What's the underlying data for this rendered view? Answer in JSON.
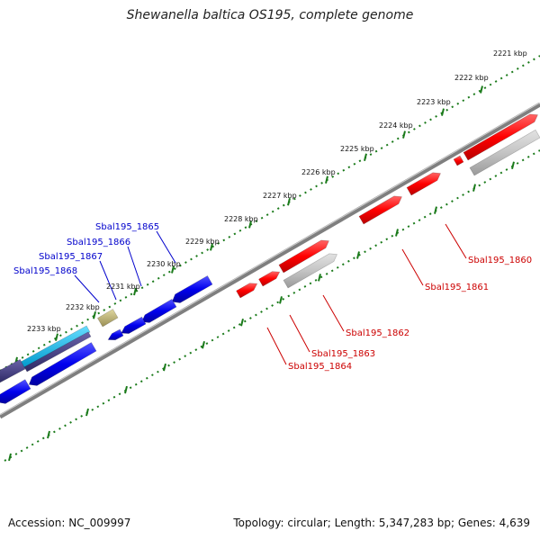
{
  "title": "Shewanella baltica OS195, complete genome",
  "footer": {
    "accession": "Accession: NC_009997",
    "summary": "Topology: circular; Length: 5,347,283 bp; Genes: 4,639"
  },
  "colors": {
    "plus_strand": "#ff0000",
    "minus_strand": "#0000ff",
    "tick": "#1a7a1a",
    "backbone": "#888888",
    "plus_label": "#cc0000",
    "minus_label": "#0000cc"
  },
  "ruler": {
    "unit": "kbp",
    "labels": [
      {
        "name": "kbp-2221",
        "text": "2221 kbp"
      },
      {
        "name": "kbp-2222",
        "text": "2222 kbp"
      },
      {
        "name": "kbp-2223",
        "text": "2223 kbp"
      },
      {
        "name": "kbp-2224",
        "text": "2224 kbp"
      },
      {
        "name": "kbp-2225",
        "text": "2225 kbp"
      },
      {
        "name": "kbp-2226",
        "text": "2226 kbp"
      },
      {
        "name": "kbp-2227",
        "text": "2227 kbp"
      },
      {
        "name": "kbp-2228",
        "text": "2228 kbp"
      },
      {
        "name": "kbp-2229",
        "text": "2229 kbp"
      },
      {
        "name": "kbp-2230",
        "text": "2230 kbp"
      },
      {
        "name": "kbp-2231",
        "text": "2231 kbp"
      },
      {
        "name": "kbp-2232",
        "text": "2232 kbp"
      },
      {
        "name": "kbp-2233",
        "text": "2233 kbp"
      }
    ]
  },
  "gene_labels": {
    "plus": [
      {
        "name": "gene-label-sbal195-1860",
        "text": "Sbal195_1860"
      },
      {
        "name": "gene-label-sbal195-1861",
        "text": "Sbal195_1861"
      },
      {
        "name": "gene-label-sbal195-1862",
        "text": "Sbal195_1862"
      },
      {
        "name": "gene-label-sbal195-1863",
        "text": "Sbal195_1863"
      },
      {
        "name": "gene-label-sbal195-1864",
        "text": "Sbal195_1864"
      }
    ],
    "minus": [
      {
        "name": "gene-label-sbal195-1865",
        "text": "Sbal195_1865"
      },
      {
        "name": "gene-label-sbal195-1866",
        "text": "Sbal195_1866"
      },
      {
        "name": "gene-label-sbal195-1867",
        "text": "Sbal195_1867"
      },
      {
        "name": "gene-label-sbal195-1868",
        "text": "Sbal195_1868"
      }
    ]
  }
}
